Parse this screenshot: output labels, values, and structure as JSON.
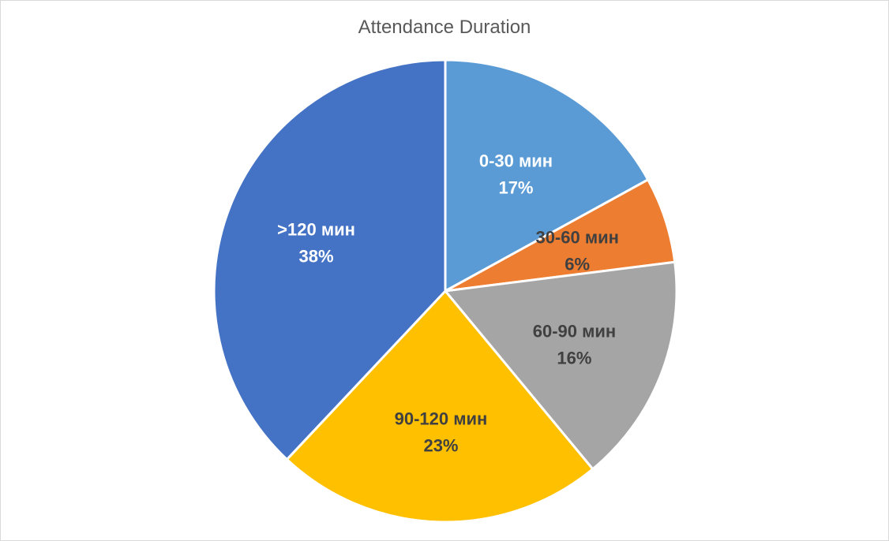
{
  "chart_data": {
    "type": "pie",
    "title": "Attendance Duration",
    "categories": [
      "0-30 мин",
      "30-60 мин",
      "60-90 мин",
      "90-120 мин",
      ">120 мин"
    ],
    "values": [
      17,
      6,
      16,
      23,
      38
    ],
    "percent_labels": [
      "17%",
      "6%",
      "16%",
      "23%",
      "38%"
    ],
    "colors": [
      "#5B9BD5",
      "#ED7D31",
      "#A5A5A5",
      "#FFC000",
      "#4472C4"
    ],
    "label_colors": [
      "#FFFFFF",
      "#404040",
      "#404040",
      "#404040",
      "#FFFFFF"
    ],
    "start_angle_deg": 0,
    "direction": "clockwise",
    "legend": "none"
  }
}
